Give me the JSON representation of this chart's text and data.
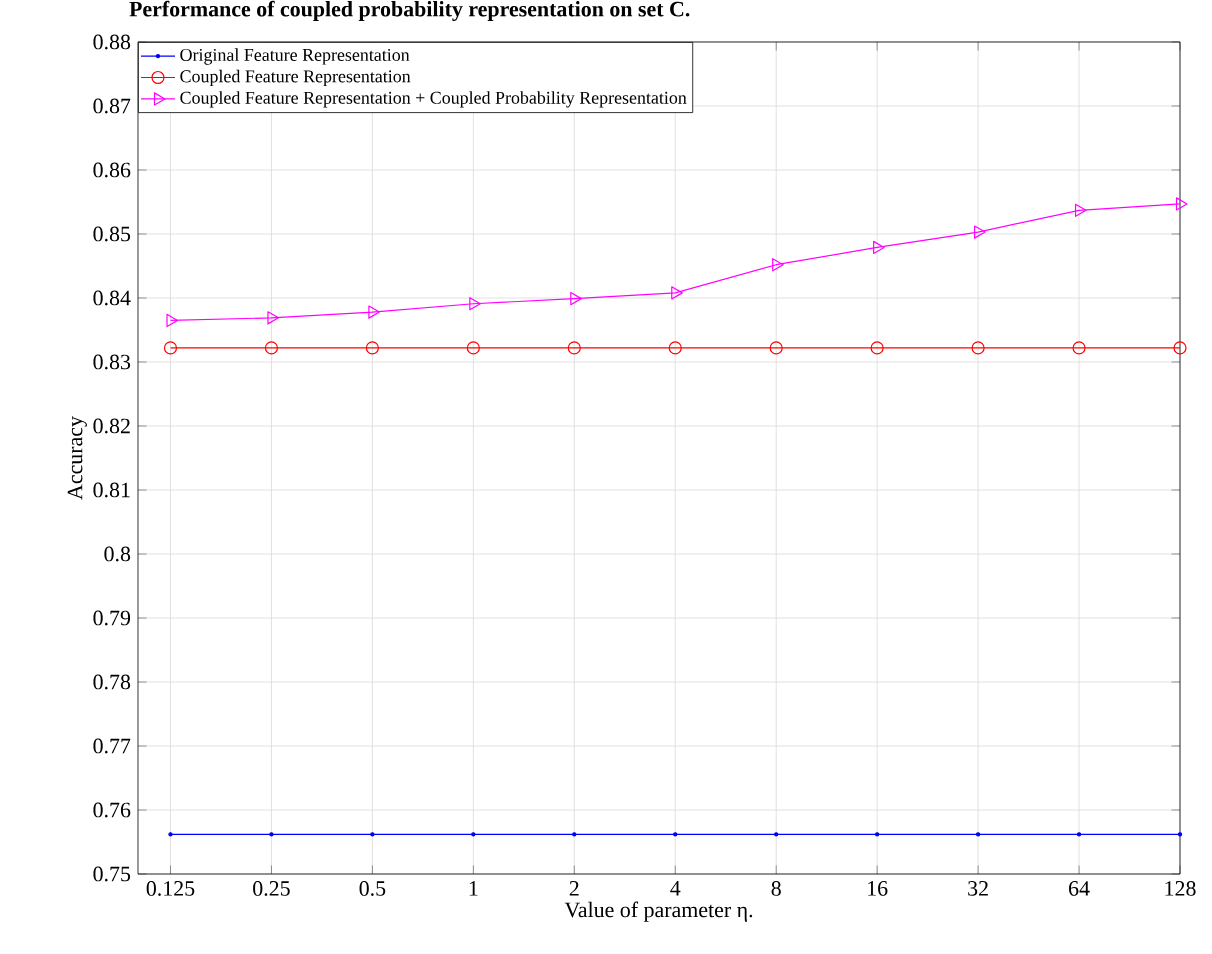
{
  "chart_data": {
    "type": "line",
    "title": "Performance of coupled probability representation on set C.",
    "xlabel": "Value of parameter η.",
    "ylabel": "Accuracy",
    "x": [
      0.125,
      0.25,
      0.5,
      1,
      2,
      4,
      8,
      16,
      32,
      64,
      128
    ],
    "series": [
      {
        "name": "Original Feature Representation",
        "color": "#0000ff",
        "marker": "circle",
        "values": [
          0.7562,
          0.7562,
          0.7562,
          0.7562,
          0.7562,
          0.7562,
          0.7562,
          0.7562,
          0.7562,
          0.7562,
          0.7562
        ]
      },
      {
        "name": "Coupled Feature Representation",
        "color": "#ff0000",
        "marker": "circle",
        "values": [
          0.8322,
          0.8322,
          0.8322,
          0.8322,
          0.8322,
          0.8322,
          0.8322,
          0.8322,
          0.8322,
          0.8322,
          0.8322
        ]
      },
      {
        "name": "Coupled Feature Representation + Coupled Probability Representation",
        "color": "#ff00ff",
        "marker": "triangle",
        "values": [
          0.8365,
          0.8369,
          0.8378,
          0.8391,
          0.8399,
          0.8408,
          0.8452,
          0.8479,
          0.8503,
          0.8537,
          0.8547
        ]
      }
    ],
    "log": "x",
    "xlim": [
      0.1,
      128
    ],
    "ylim": [
      0.75,
      0.88
    ],
    "xticks": [
      {
        "value": 0.125,
        "label": "0.125"
      },
      {
        "value": 0.25,
        "label": "0.25"
      },
      {
        "value": 0.5,
        "label": "0.5"
      },
      {
        "value": 1,
        "label": "1"
      },
      {
        "value": 2,
        "label": "2"
      },
      {
        "value": 4,
        "label": "4"
      },
      {
        "value": 8,
        "label": "8"
      },
      {
        "value": 16,
        "label": "16"
      },
      {
        "value": 32,
        "label": "32"
      },
      {
        "value": 64,
        "label": "64"
      },
      {
        "value": 128,
        "label": "128"
      }
    ],
    "yticks": [
      0.75,
      0.76,
      0.77,
      0.78,
      0.79,
      0.8,
      0.81,
      0.82,
      0.83,
      0.84,
      0.85,
      0.86,
      0.87,
      0.88
    ],
    "grid": true,
    "legend": "top left",
    "line_style": "solid"
  }
}
